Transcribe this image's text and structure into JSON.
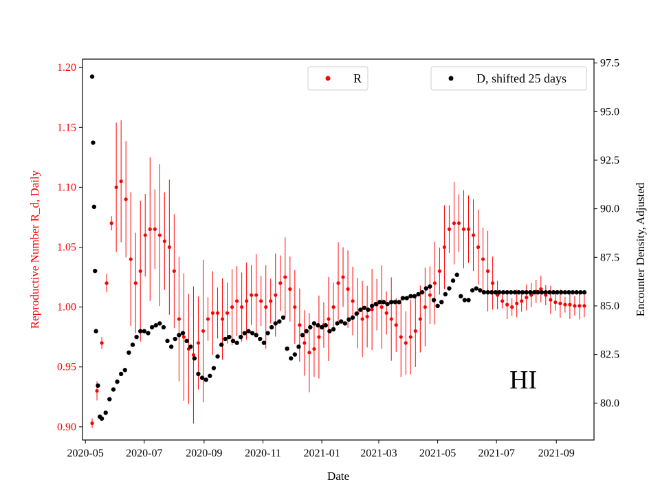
{
  "chart_data": {
    "type": "scatter",
    "annotation": "HI",
    "xlabel": "Date",
    "ylabel_left": "Reproductive Number R_d, Daily",
    "ylabel_right": "Encounter Density, Adjusted",
    "x_ticks": [
      "2020-05",
      "2020-07",
      "2020-09",
      "2020-11",
      "2021-01",
      "2021-03",
      "2021-05",
      "2021-07",
      "2021-09"
    ],
    "x_range_days": [
      -10,
      520
    ],
    "ylim_left": [
      0.889,
      1.207
    ],
    "ylim_right": [
      78.1,
      97.7
    ],
    "yticks_left": [
      "0.90",
      "0.95",
      "1.00",
      "1.05",
      "1.10",
      "1.15",
      "1.20"
    ],
    "yticks_right": [
      "80.0",
      "82.5",
      "85.0",
      "87.5",
      "90.0",
      "92.5",
      "95.0",
      "97.5"
    ],
    "colors": {
      "R": "#ff0000",
      "D": "#000000",
      "axis_left": "#ff0000",
      "axis_right": "#000000"
    },
    "legend": [
      {
        "label": "R",
        "color": "#ff0000",
        "position": "top-center"
      },
      {
        "label": "D, shifted 25 days",
        "color": "#000000",
        "position": "top-right"
      }
    ],
    "series": [
      {
        "name": "R",
        "axis": "left",
        "color": "#ff0000",
        "start_date": "2020-05-08",
        "x_days": [
          0,
          5,
          10,
          15,
          20,
          25,
          30,
          35,
          40,
          45,
          50,
          55,
          60,
          65,
          70,
          75,
          80,
          85,
          90,
          95,
          100,
          105,
          110,
          115,
          120,
          125,
          130,
          135,
          140,
          145,
          150,
          155,
          160,
          165,
          170,
          175,
          180,
          185,
          190,
          195,
          200,
          205,
          210,
          215,
          220,
          225,
          230,
          235,
          240,
          245,
          250,
          255,
          260,
          265,
          270,
          275,
          280,
          285,
          290,
          295,
          300,
          305,
          310,
          315,
          320,
          325,
          330,
          335,
          340,
          345,
          350,
          355,
          360,
          365,
          370,
          375,
          380,
          385,
          390,
          395,
          400,
          405,
          410,
          415,
          420,
          425,
          430,
          435,
          440,
          445,
          450,
          455,
          460,
          465,
          470,
          475,
          480,
          485,
          490,
          495,
          500,
          505,
          510
        ],
        "values": [
          0.903,
          0.93,
          0.97,
          1.02,
          1.07,
          1.1,
          1.105,
          1.09,
          1.04,
          1.02,
          1.03,
          1.06,
          1.065,
          1.065,
          1.06,
          1.055,
          1.05,
          1.03,
          0.99,
          0.975,
          0.965,
          0.96,
          0.97,
          0.98,
          0.99,
          0.995,
          0.995,
          0.99,
          0.995,
          1.0,
          1.005,
          1.0,
          1.005,
          1.01,
          1.01,
          1.005,
          1.0,
          1.005,
          1.01,
          1.02,
          1.025,
          1.015,
          1.0,
          0.985,
          0.97,
          0.962,
          0.965,
          0.975,
          0.985,
          0.99,
          1.0,
          1.02,
          1.025,
          1.015,
          1.005,
          0.995,
          0.99,
          0.992,
          0.998,
          1.002,
          1.0,
          0.995,
          0.99,
          0.985,
          0.975,
          0.97,
          0.975,
          0.98,
          0.99,
          1.0,
          1.01,
          1.02,
          1.03,
          1.05,
          1.065,
          1.07,
          1.07,
          1.065,
          1.065,
          1.06,
          1.05,
          1.04,
          1.03,
          1.02,
          1.01,
          1.005,
          1.002,
          1.0,
          1.003,
          1.005,
          1.008,
          1.01,
          1.013,
          1.015,
          1.01,
          1.006,
          1.004,
          1.003,
          1.002,
          1.002,
          1.001,
          1.001,
          1.001
        ]
      },
      {
        "name": "D, shifted 25 days",
        "axis": "right",
        "color": "#000000",
        "start_date": "2020-05-08",
        "x_days": [
          0,
          1,
          2,
          3,
          4,
          6,
          8,
          10,
          14,
          18,
          22,
          26,
          30,
          34,
          38,
          42,
          46,
          50,
          54,
          58,
          62,
          66,
          70,
          74,
          78,
          82,
          86,
          90,
          94,
          98,
          102,
          106,
          110,
          114,
          118,
          122,
          126,
          130,
          134,
          138,
          142,
          146,
          150,
          154,
          158,
          162,
          166,
          170,
          174,
          178,
          182,
          186,
          190,
          194,
          198,
          202,
          206,
          210,
          214,
          218,
          222,
          226,
          230,
          234,
          238,
          242,
          246,
          250,
          254,
          258,
          262,
          266,
          270,
          274,
          278,
          282,
          286,
          290,
          294,
          298,
          302,
          306,
          310,
          314,
          318,
          322,
          326,
          330,
          334,
          338,
          342,
          346,
          350,
          354,
          358,
          362,
          366,
          370,
          374,
          378,
          382,
          386,
          390,
          394,
          398,
          402,
          406,
          410,
          414,
          418,
          422,
          426,
          430,
          434,
          438,
          442,
          446,
          450,
          454,
          458,
          462,
          466,
          470,
          474,
          478,
          482,
          486,
          490,
          494,
          498,
          502,
          506,
          510
        ],
        "values": [
          96.8,
          93.4,
          90.1,
          86.8,
          83.7,
          80.9,
          79.3,
          79.2,
          79.5,
          80.2,
          80.7,
          81.1,
          81.5,
          81.7,
          82.6,
          83.0,
          83.4,
          83.7,
          83.7,
          83.6,
          83.9,
          84.0,
          84.1,
          83.9,
          83.2,
          82.9,
          83.3,
          83.5,
          83.6,
          83.2,
          82.9,
          82.3,
          81.5,
          81.3,
          81.2,
          81.4,
          81.8,
          82.4,
          83.0,
          83.3,
          83.4,
          83.2,
          83.1,
          83.4,
          83.6,
          83.7,
          83.6,
          83.5,
          83.3,
          83.1,
          83.6,
          83.9,
          84.1,
          84.2,
          84.4,
          82.8,
          82.3,
          82.5,
          82.9,
          83.5,
          83.7,
          83.9,
          84.1,
          84.0,
          83.9,
          84.0,
          83.7,
          83.8,
          84.1,
          84.2,
          84.1,
          84.3,
          84.4,
          84.6,
          84.8,
          84.9,
          84.8,
          85.0,
          85.1,
          85.2,
          85.2,
          85.1,
          85.2,
          85.2,
          85.2,
          85.4,
          85.4,
          85.5,
          85.5,
          85.6,
          85.7,
          85.9,
          86.0,
          85.3,
          85.0,
          85.2,
          85.6,
          85.9,
          86.3,
          86.6,
          85.5,
          85.3,
          85.3,
          85.8,
          85.9,
          85.8,
          85.7,
          85.7,
          85.7,
          85.7,
          85.7,
          85.7,
          85.7,
          85.7,
          85.7,
          85.7,
          85.7,
          85.7,
          85.7,
          85.7,
          85.7,
          85.7,
          85.7,
          85.7,
          85.7,
          85.7,
          85.7,
          85.7,
          85.7,
          85.7,
          85.7,
          85.7,
          85.7
        ]
      }
    ]
  }
}
